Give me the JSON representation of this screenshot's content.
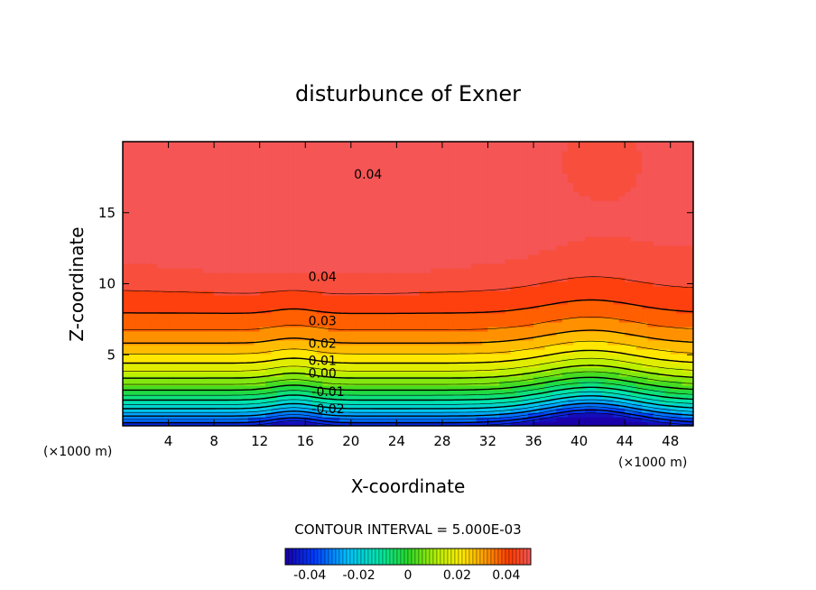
{
  "chart_data": {
    "type": "heatmap",
    "subtype": "filled-contour",
    "title": "disturbunce of Exner",
    "xlabel": "X-coordinate",
    "ylabel": "Z-coordinate",
    "x_unit_left": "(×1000 m)",
    "x_unit_right": "(×1000 m)",
    "xlim": [
      0,
      50
    ],
    "ylim": [
      0,
      20
    ],
    "x_ticks": [
      4,
      8,
      12,
      16,
      20,
      24,
      28,
      32,
      36,
      40,
      44,
      48
    ],
    "y_ticks": [
      5,
      10,
      15
    ],
    "contour_interval_text": "CONTOUR INTERVAL = 5.000E-03",
    "contour_interval": 0.005,
    "value_range": [
      -0.05,
      0.05
    ],
    "colorbar_ticks": [
      "-0.04",
      "-0.02",
      "0",
      "0.02",
      "0.04"
    ],
    "colorbar_tick_values": [
      -0.04,
      -0.02,
      0,
      0.02,
      0.04
    ],
    "contour_labels": [
      {
        "text": "0.04",
        "x": 21.5,
        "z": 17.7
      },
      {
        "text": "0.04",
        "x": 17.5,
        "z": 10.5
      },
      {
        "text": "0.03",
        "x": 17.5,
        "z": 7.4
      },
      {
        "text": "0.02",
        "x": 17.5,
        "z": 5.8
      },
      {
        "text": "0.01",
        "x": 17.5,
        "z": 4.6
      },
      {
        "text": "0.00",
        "x": 17.5,
        "z": 3.7
      },
      {
        "text": "-0.01",
        "x": 18.0,
        "z": 2.4
      },
      {
        "text": "-0.02",
        "x": 18.0,
        "z": 1.2
      }
    ]
  }
}
